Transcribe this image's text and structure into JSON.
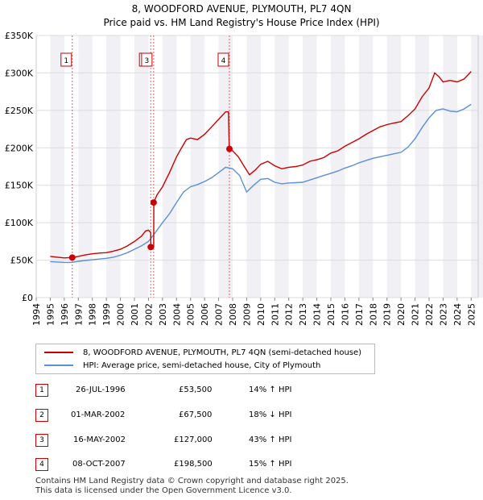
{
  "header": {
    "line1": "8, WOODFORD AVENUE, PLYMOUTH, PL7 4QN",
    "line2": "Price paid vs. HM Land Registry's House Price Index (HPI)"
  },
  "chart_data": {
    "type": "line",
    "ylim": [
      0,
      350000
    ],
    "xlim": [
      1994,
      2025.5
    ],
    "yticks": [
      {
        "value": 0,
        "label": "£0"
      },
      {
        "value": 50000,
        "label": "£50K"
      },
      {
        "value": 100000,
        "label": "£100K"
      },
      {
        "value": 150000,
        "label": "£150K"
      },
      {
        "value": 200000,
        "label": "£200K"
      },
      {
        "value": 250000,
        "label": "£250K"
      },
      {
        "value": 300000,
        "label": "£300K"
      },
      {
        "value": 350000,
        "label": "£350K"
      }
    ],
    "xticks": [
      "1994",
      "1995",
      "1996",
      "1997",
      "1998",
      "1999",
      "2000",
      "2001",
      "2002",
      "2003",
      "2004",
      "2005",
      "2006",
      "2007",
      "2008",
      "2009",
      "2010",
      "2011",
      "2012",
      "2013",
      "2014",
      "2015",
      "2016",
      "2017",
      "2018",
      "2019",
      "2020",
      "2021",
      "2022",
      "2023",
      "2024",
      "2025"
    ],
    "series": [
      {
        "name": "8, WOODFORD AVENUE, PLYMOUTH, PL7 4QN (semi-detached house)",
        "color": "#cc0000",
        "points": [
          [
            1995.0,
            55000
          ],
          [
            1995.5,
            54000
          ],
          [
            1996.0,
            53000
          ],
          [
            1996.57,
            53500
          ],
          [
            1997.0,
            55000
          ],
          [
            1997.5,
            57000
          ],
          [
            1998.0,
            58500
          ],
          [
            1998.5,
            59500
          ],
          [
            1999.0,
            60000
          ],
          [
            1999.5,
            62000
          ],
          [
            2000.0,
            64500
          ],
          [
            2000.5,
            69000
          ],
          [
            2001.0,
            75000
          ],
          [
            2001.5,
            82000
          ],
          [
            2001.8,
            89000
          ],
          [
            2002.0,
            90000
          ],
          [
            2002.16,
            87000
          ],
          [
            2002.17,
            67500
          ],
          [
            2002.37,
            67500
          ],
          [
            2002.38,
            127000
          ],
          [
            2002.6,
            137000
          ],
          [
            2003.0,
            148000
          ],
          [
            2003.5,
            167000
          ],
          [
            2004.0,
            188000
          ],
          [
            2004.3,
            198000
          ],
          [
            2004.7,
            211000
          ],
          [
            2005.0,
            213000
          ],
          [
            2005.5,
            211000
          ],
          [
            2006.0,
            218000
          ],
          [
            2006.5,
            228000
          ],
          [
            2007.0,
            238000
          ],
          [
            2007.5,
            248000
          ],
          [
            2007.7,
            248000
          ],
          [
            2007.76,
            198500
          ],
          [
            2008.0,
            196000
          ],
          [
            2008.4,
            188000
          ],
          [
            2008.8,
            176000
          ],
          [
            2009.2,
            164000
          ],
          [
            2009.6,
            170000
          ],
          [
            2010.0,
            178000
          ],
          [
            2010.5,
            182000
          ],
          [
            2011.0,
            176000
          ],
          [
            2011.5,
            172000
          ],
          [
            2012.0,
            174000
          ],
          [
            2012.5,
            175000
          ],
          [
            2013.0,
            177000
          ],
          [
            2013.5,
            182000
          ],
          [
            2014.0,
            184000
          ],
          [
            2014.5,
            187000
          ],
          [
            2015.0,
            193000
          ],
          [
            2015.5,
            196000
          ],
          [
            2016.0,
            202000
          ],
          [
            2016.5,
            207000
          ],
          [
            2017.0,
            212000
          ],
          [
            2017.5,
            218000
          ],
          [
            2018.0,
            223000
          ],
          [
            2018.5,
            228000
          ],
          [
            2019.0,
            231000
          ],
          [
            2019.5,
            233000
          ],
          [
            2020.0,
            235000
          ],
          [
            2020.5,
            243000
          ],
          [
            2021.0,
            252000
          ],
          [
            2021.5,
            268000
          ],
          [
            2022.0,
            280000
          ],
          [
            2022.4,
            300000
          ],
          [
            2022.7,
            295000
          ],
          [
            2023.0,
            288000
          ],
          [
            2023.5,
            290000
          ],
          [
            2024.0,
            288000
          ],
          [
            2024.5,
            292000
          ],
          [
            2025.0,
            302000
          ]
        ]
      },
      {
        "name": "HPI: Average price, semi-detached house, City of Plymouth",
        "color": "#5b8fd6",
        "points": [
          [
            1995.0,
            48000
          ],
          [
            1995.5,
            47500
          ],
          [
            1996.0,
            47000
          ],
          [
            1996.5,
            47000
          ],
          [
            1997.0,
            48500
          ],
          [
            1997.5,
            49500
          ],
          [
            1998.0,
            50500
          ],
          [
            1998.5,
            51500
          ],
          [
            1999.0,
            52500
          ],
          [
            1999.5,
            54000
          ],
          [
            2000.0,
            56500
          ],
          [
            2000.5,
            60000
          ],
          [
            2001.0,
            64500
          ],
          [
            2001.5,
            69000
          ],
          [
            2002.0,
            75000
          ],
          [
            2002.5,
            87000
          ],
          [
            2003.0,
            100000
          ],
          [
            2003.5,
            112000
          ],
          [
            2004.0,
            127000
          ],
          [
            2004.5,
            141000
          ],
          [
            2005.0,
            148000
          ],
          [
            2005.5,
            151000
          ],
          [
            2006.0,
            155000
          ],
          [
            2006.5,
            160000
          ],
          [
            2007.0,
            167000
          ],
          [
            2007.5,
            174000
          ],
          [
            2008.0,
            172000
          ],
          [
            2008.5,
            163000
          ],
          [
            2009.0,
            141000
          ],
          [
            2009.5,
            150000
          ],
          [
            2010.0,
            158000
          ],
          [
            2010.5,
            159000
          ],
          [
            2011.0,
            154000
          ],
          [
            2011.5,
            152000
          ],
          [
            2012.0,
            153000
          ],
          [
            2012.5,
            153500
          ],
          [
            2013.0,
            154000
          ],
          [
            2013.5,
            157000
          ],
          [
            2014.0,
            160000
          ],
          [
            2014.5,
            163000
          ],
          [
            2015.0,
            166000
          ],
          [
            2015.5,
            169000
          ],
          [
            2016.0,
            173000
          ],
          [
            2016.5,
            176000
          ],
          [
            2017.0,
            180000
          ],
          [
            2017.5,
            183000
          ],
          [
            2018.0,
            186000
          ],
          [
            2018.5,
            188000
          ],
          [
            2019.0,
            190000
          ],
          [
            2019.5,
            192000
          ],
          [
            2020.0,
            194000
          ],
          [
            2020.5,
            201000
          ],
          [
            2021.0,
            212000
          ],
          [
            2021.5,
            227000
          ],
          [
            2022.0,
            240000
          ],
          [
            2022.5,
            250000
          ],
          [
            2023.0,
            252000
          ],
          [
            2023.5,
            249000
          ],
          [
            2024.0,
            248000
          ],
          [
            2024.5,
            252000
          ],
          [
            2025.0,
            258000
          ]
        ]
      }
    ],
    "sales": [
      {
        "label": "1",
        "x": 1996.57,
        "price": 53500
      },
      {
        "label": "2",
        "x": 2002.16,
        "price": 67500
      },
      {
        "label": "3",
        "x": 2002.37,
        "price": 127000
      },
      {
        "label": "4",
        "x": 2007.77,
        "price": 198500
      }
    ]
  },
  "legend": {
    "property": "8, WOODFORD AVENUE, PLYMOUTH, PL7 4QN (semi-detached house)",
    "hpi": "HPI: Average price, semi-detached house, City of Plymouth"
  },
  "transactions": [
    {
      "num": "1",
      "date": "26-JUL-1996",
      "price": "£53,500",
      "hpi": "14% ↑ HPI"
    },
    {
      "num": "2",
      "date": "01-MAR-2002",
      "price": "£67,500",
      "hpi": "18% ↓ HPI"
    },
    {
      "num": "3",
      "date": "16-MAY-2002",
      "price": "£127,000",
      "hpi": "43% ↑ HPI"
    },
    {
      "num": "4",
      "date": "08-OCT-2007",
      "price": "£198,500",
      "hpi": "15% ↑ HPI"
    }
  ],
  "footer": {
    "line1": "Contains HM Land Registry data © Crown copyright and database right 2025.",
    "line2": "This data is licensed under the Open Government Licence v3.0."
  }
}
